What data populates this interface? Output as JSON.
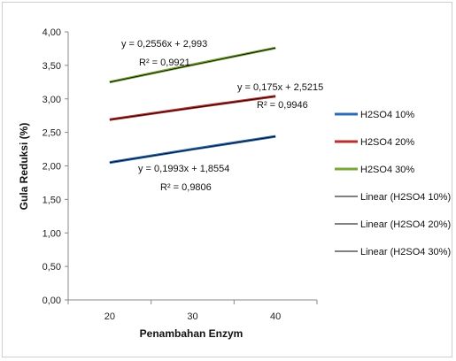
{
  "chart_data": {
    "type": "line",
    "x": [
      20,
      30,
      40
    ],
    "xlabel": "Penambahan Enzym",
    "ylabel": "Gula Reduksi (%)",
    "ylim": [
      0,
      4
    ],
    "y_ticks": [
      "0,00",
      "0,50",
      "1,00",
      "1,50",
      "2,00",
      "2,50",
      "3,00",
      "3,50",
      "4,00"
    ],
    "x_ticks": [
      "20",
      "30",
      "40"
    ],
    "grid": false,
    "legend_position": "right",
    "series": [
      {
        "name": "H2SO4 10%",
        "values": [
          2.05,
          2.25,
          2.44
        ],
        "color": "#2e6bb5"
      },
      {
        "name": "H2SO4 20%",
        "values": [
          2.69,
          2.87,
          3.04
        ],
        "color": "#b8312f"
      },
      {
        "name": "H2SO4 30%",
        "values": [
          3.25,
          3.51,
          3.76
        ],
        "color": "#7aa63a"
      }
    ],
    "trendlines": [
      {
        "name": "Linear (H2SO4 10%)",
        "color": "#000000",
        "equation": "y = 0,1993x + 1,8554",
        "r2": "R² = 0,9806"
      },
      {
        "name": "Linear (H2SO4 20%)",
        "color": "#000000",
        "equation": "y = 0,175x + 2,5215",
        "r2": "R² = 0,9946"
      },
      {
        "name": "Linear (H2SO4 30%)",
        "color": "#000000",
        "equation": "y = 0,2556x + 2,993",
        "r2": "R² = 0,9921"
      }
    ]
  }
}
